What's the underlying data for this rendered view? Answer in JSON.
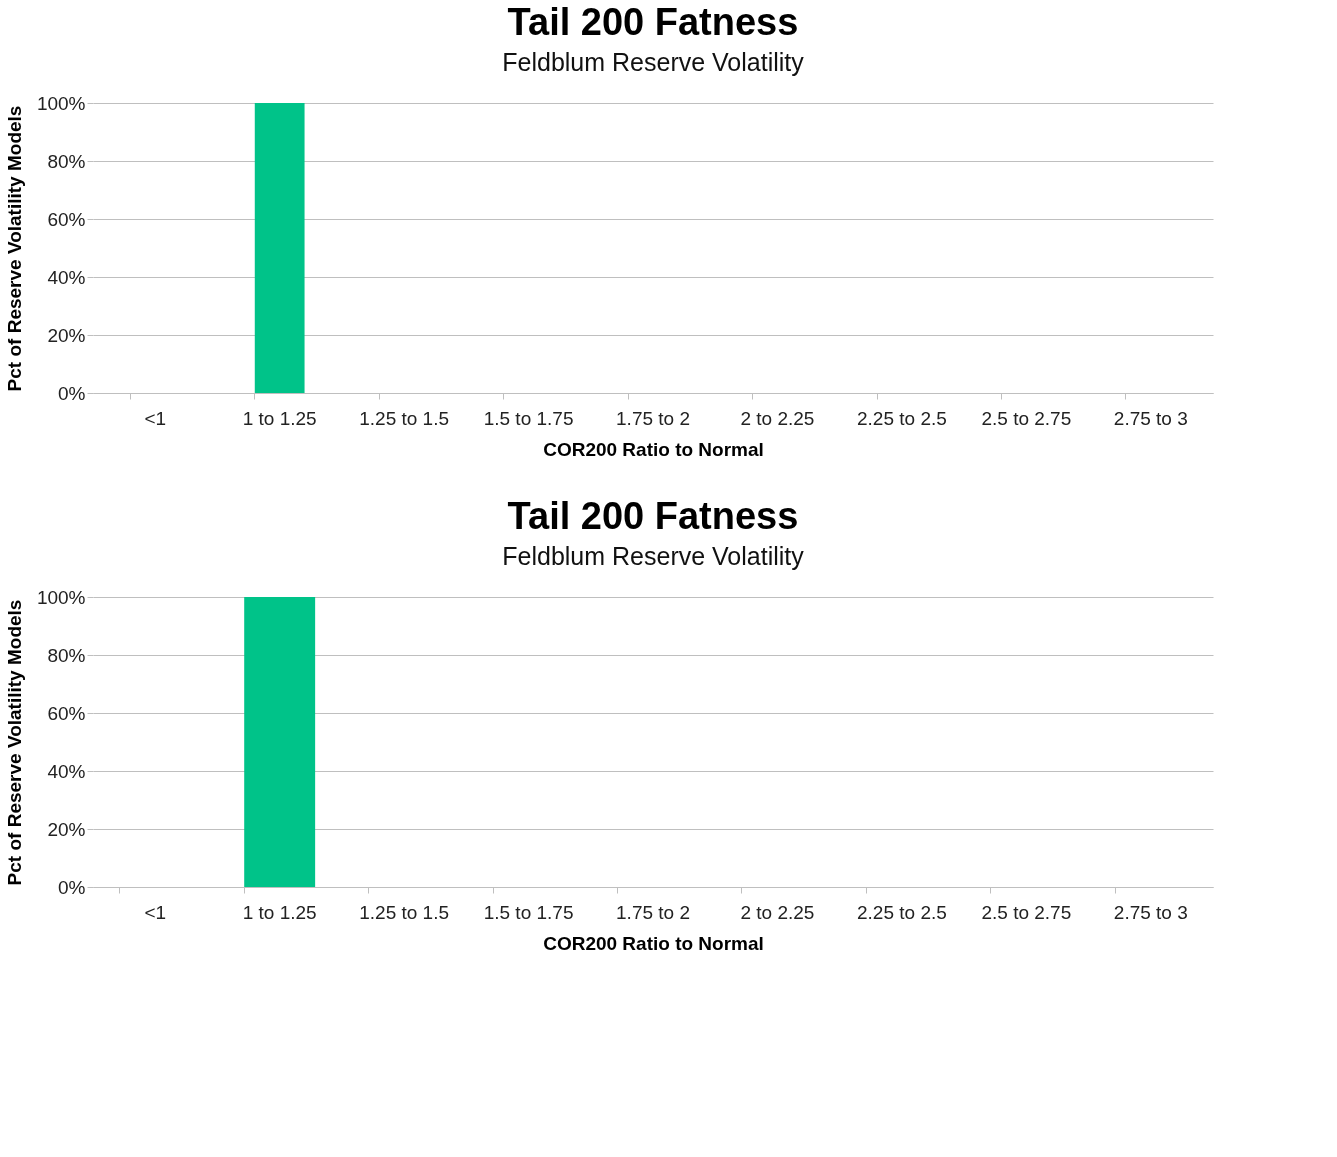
{
  "chart_data": [
    {
      "type": "bar",
      "title": "Tail 200 Fatness",
      "subtitle": "Feldblum Reserve Volatility",
      "xlabel": "COR200 Ratio to Normal",
      "ylabel": "Pct of Reserve Volatility Models",
      "categories": [
        "<1",
        "1 to 1.25",
        "1.25 to 1.5",
        "1.5 to 1.75",
        "1.75 to 2",
        "2 to 2.25",
        "2.25 to 2.5",
        "2.5 to 2.75",
        "2.75 to 3"
      ],
      "values": [
        0,
        100,
        0,
        0,
        0,
        0,
        0,
        0,
        0
      ],
      "color": "#00c389",
      "ylim": [
        0,
        100
      ],
      "yticks": [
        {
          "value": 0,
          "label": "0%"
        },
        {
          "value": 20,
          "label": "20%"
        },
        {
          "value": 40,
          "label": "40%"
        },
        {
          "value": 60,
          "label": "60%"
        },
        {
          "value": 80,
          "label": "80%"
        },
        {
          "value": 100,
          "label": "100%"
        }
      ],
      "grid": "y"
    },
    {
      "type": "bar",
      "title": "Tail 200 Fatness",
      "subtitle": "Feldblum Reserve Volatility",
      "xlabel": "COR200 Ratio to Normal",
      "ylabel": "Pct of Reserve Volatility Models",
      "categories": [
        "<1",
        "1 to 1.25",
        "1.25 to 1.5",
        "1.5 to 1.75",
        "1.75 to 2",
        "2 to 2.25",
        "2.25 to 2.5",
        "2.5 to 2.75",
        "2.75 to 3"
      ],
      "values": [
        0,
        100,
        0,
        0,
        0,
        0,
        0,
        0,
        0
      ],
      "color": "#00c389",
      "ylim": [
        0,
        100
      ],
      "yticks": [
        {
          "value": 0,
          "label": "0%"
        },
        {
          "value": 20,
          "label": "20%"
        },
        {
          "value": 40,
          "label": "40%"
        },
        {
          "value": 60,
          "label": "60%"
        },
        {
          "value": 80,
          "label": "80%"
        },
        {
          "value": 100,
          "label": "100%"
        }
      ],
      "grid": "y"
    }
  ]
}
